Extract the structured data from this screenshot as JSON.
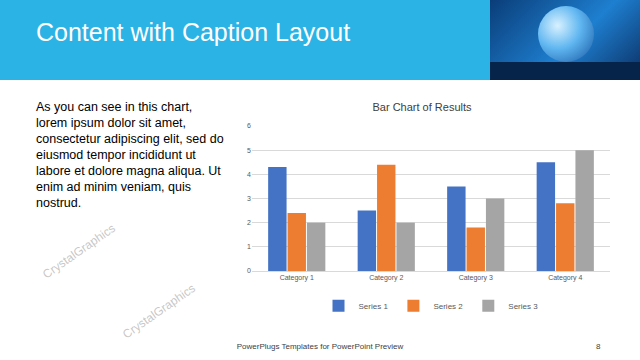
{
  "slide": {
    "title": "Content with Caption Layout",
    "caption": "As you can see in this chart, lorem ipsum dolor sit amet, consectetur adipiscing elit, sed do eiusmod tempor incididunt ut labore et dolore magna aliqua. Ut enim ad minim veniam, quis nostrud.",
    "footer": "PowerPlugs Templates for PowerPoint Preview",
    "page": 8,
    "watermark": "CrystalGraphics"
  },
  "chart_data": {
    "type": "bar",
    "title": "Bar Chart of Results",
    "categories": [
      "Category 1",
      "Category 2",
      "Category 3",
      "Category 4"
    ],
    "series": [
      {
        "name": "Series 1",
        "color": "#4472c4",
        "values": [
          4.3,
          2.5,
          3.5,
          4.5
        ]
      },
      {
        "name": "Series 2",
        "color": "#ed7d31",
        "values": [
          2.4,
          4.4,
          1.8,
          2.8
        ]
      },
      {
        "name": "Series 3",
        "color": "#a5a5a5",
        "values": [
          2,
          2,
          3,
          5
        ]
      }
    ],
    "ylim": [
      0,
      6
    ],
    "yticks": [
      0,
      1,
      2,
      3,
      4,
      5,
      6
    ],
    "grid": true,
    "legend": "bottom"
  }
}
